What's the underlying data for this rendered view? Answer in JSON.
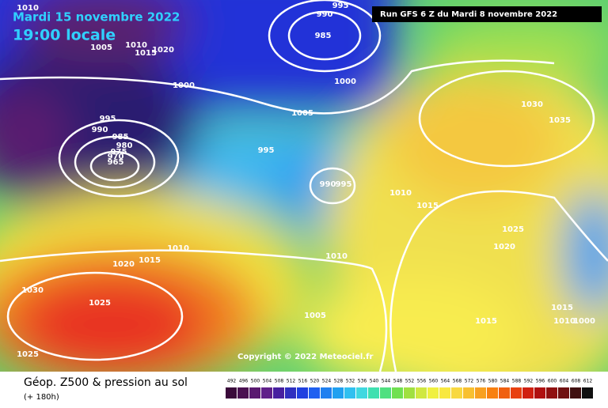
{
  "header": {
    "date": "Mardi 15 novembre 2022",
    "time": "19:00 locale",
    "run": "Run GFS 6 Z du Mardi 8 novembre 2022"
  },
  "map": {
    "isobar_labels": [
      1010,
      1005,
      1010,
      1015,
      1020,
      995,
      990,
      985,
      1000,
      1000,
      1005,
      995,
      990,
      985,
      980,
      975,
      970,
      965,
      995,
      990,
      995,
      1010,
      1015,
      1030,
      1035,
      1025,
      1020,
      1010,
      1015,
      1020,
      1010,
      1030,
      1025,
      1005,
      1015,
      1015,
      1010,
      1000,
      1025
    ],
    "copyright": "Copyright © 2022 Meteociel.fr"
  },
  "legend": {
    "title": "Géop. Z500 & pression au sol",
    "subtitle": "(+ 180h)",
    "scale": {
      "values": [
        492,
        496,
        500,
        504,
        508,
        512,
        516,
        520,
        524,
        528,
        532,
        536,
        540,
        544,
        548,
        552,
        556,
        560,
        564,
        568,
        572,
        576,
        580,
        584,
        588,
        592,
        596,
        600,
        604,
        608,
        612
      ],
      "colors": [
        "#3a0a3a",
        "#4a1050",
        "#5a1a70",
        "#60208a",
        "#4820a0",
        "#3030c0",
        "#2040e0",
        "#2060f0",
        "#2080f0",
        "#20a0f0",
        "#30c0f0",
        "#40d8e0",
        "#40e0b0",
        "#50e080",
        "#70e050",
        "#a0e040",
        "#d0e840",
        "#f0f040",
        "#f8e840",
        "#f8d840",
        "#f8c030",
        "#f8a020",
        "#f88010",
        "#f06010",
        "#e84010",
        "#d02010",
        "#b01010",
        "#901010",
        "#701010",
        "#401010",
        "#101010"
      ]
    }
  }
}
